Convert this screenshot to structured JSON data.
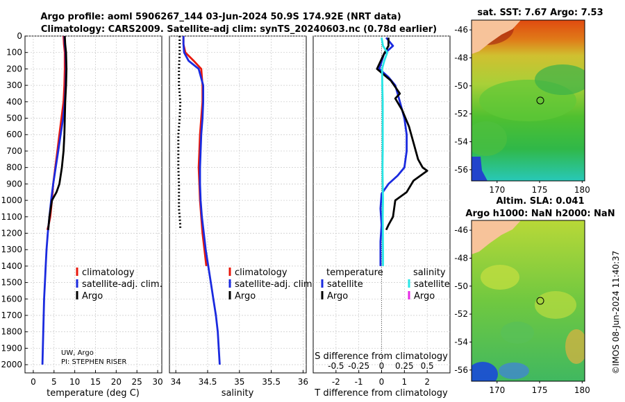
{
  "header": {
    "title_line1": "Argo profile: aoml 5906267_144 03-Jun-2024 50.9S 174.92E (NRT data)",
    "title_line2": "Climatology: CARS2009. Satellite-adj clim: synTS_20240603.nc (0.78d earlier)"
  },
  "credits": {
    "institution": "UW, Argo",
    "pi": "PI: STEPHEN RISER",
    "watermark": "©IMOS 08-Jun-2024 11:40:37"
  },
  "colors": {
    "climatology": "#e8180c",
    "satellite_adj": "#1a2adf",
    "argo": "#000000",
    "salinity_satellite": "#28e6e6",
    "salinity_argo": "#e628e6"
  },
  "chart_data": [
    {
      "type": "line",
      "id": "temperature",
      "xlabel": "temperature (deg C)",
      "ylabel": "",
      "xlim": [
        -2,
        31
      ],
      "ylim": [
        2050,
        0
      ],
      "xticks": [
        0,
        5,
        10,
        15,
        20,
        25,
        30
      ],
      "yticks": [
        0,
        100,
        200,
        300,
        400,
        500,
        600,
        700,
        800,
        900,
        1000,
        1100,
        1200,
        1300,
        1400,
        1500,
        1600,
        1700,
        1800,
        1900,
        2000
      ],
      "legend": [
        "climatology",
        "satellite-adj. clim.",
        "Argo"
      ],
      "series": [
        {
          "name": "climatology",
          "color": "#e8180c",
          "x": [
            7.3,
            7.4,
            7.6,
            7.6,
            7.5,
            7.3,
            6.8,
            6.3,
            5.8,
            5.3,
            4.8,
            4.5,
            4.1,
            3.7,
            3.4
          ],
          "y": [
            0,
            50,
            100,
            200,
            300,
            400,
            500,
            600,
            700,
            800,
            900,
            1000,
            1100,
            1150,
            1180
          ]
        },
        {
          "name": "satellite-adj. clim.",
          "color": "#1a2adf",
          "x": [
            7.5,
            7.6,
            7.8,
            7.9,
            7.8,
            7.6,
            7.2,
            6.6,
            6.0,
            5.4,
            4.8,
            4.3,
            3.9,
            3.5,
            3.2,
            3.0,
            2.8,
            2.6,
            2.5,
            2.4,
            2.3,
            2.2
          ],
          "y": [
            0,
            50,
            100,
            200,
            300,
            400,
            500,
            600,
            700,
            800,
            900,
            1000,
            1100,
            1200,
            1300,
            1400,
            1500,
            1600,
            1700,
            1800,
            1900,
            2000
          ]
        },
        {
          "name": "Argo",
          "color": "#000000",
          "x": [
            7.6,
            7.7,
            7.9,
            8.0,
            7.9,
            7.7,
            7.6,
            7.5,
            7.3,
            6.9,
            6.3,
            5.6,
            4.5,
            3.9,
            3.6
          ],
          "y": [
            0,
            50,
            100,
            200,
            300,
            400,
            500,
            600,
            700,
            800,
            900,
            950,
            1000,
            1100,
            1180
          ]
        }
      ]
    },
    {
      "type": "line",
      "id": "salinity",
      "xlabel": "salinity",
      "ylabel": "",
      "xlim": [
        33.9,
        36.05
      ],
      "ylim": [
        2050,
        0
      ],
      "xticks": [
        34,
        34.5,
        35,
        35.5,
        36
      ],
      "xticklabels": [
        "34",
        "34.5",
        "35",
        "35.5",
        "36"
      ],
      "legend": [
        "climatology",
        "satellite-adj. clim.",
        "Argo"
      ],
      "series": [
        {
          "name": "climatology",
          "color": "#e8180c",
          "x": [
            34.12,
            34.12,
            34.15,
            34.28,
            34.4,
            34.42,
            34.42,
            34.4,
            34.38,
            34.37,
            34.36,
            34.37,
            34.38,
            34.4,
            34.42,
            34.45,
            34.48
          ],
          "y": [
            0,
            50,
            100,
            150,
            200,
            300,
            400,
            500,
            600,
            700,
            800,
            900,
            1000,
            1100,
            1200,
            1300,
            1400
          ]
        },
        {
          "name": "satellite-adj. clim.",
          "color": "#1a2adf",
          "x": [
            34.12,
            34.12,
            34.13,
            34.2,
            34.36,
            34.43,
            34.43,
            34.42,
            34.4,
            34.39,
            34.38,
            34.38,
            34.39,
            34.41,
            34.44,
            34.47,
            34.51,
            34.55,
            34.59,
            34.63,
            34.66,
            34.69
          ],
          "y": [
            0,
            50,
            100,
            150,
            200,
            300,
            400,
            500,
            600,
            700,
            800,
            900,
            1000,
            1100,
            1200,
            1300,
            1400,
            1500,
            1600,
            1700,
            1800,
            2000
          ]
        },
        {
          "name": "Argo",
          "color": "#000000",
          "x": [
            34.06,
            34.06,
            34.05,
            34.05,
            34.06,
            34.07,
            34.06,
            34.04,
            34.04,
            34.04,
            34.05,
            34.05,
            34.05,
            34.06,
            34.07,
            34.07
          ],
          "y": [
            0,
            100,
            200,
            300,
            350,
            400,
            500,
            600,
            700,
            800,
            900,
            1000,
            1050,
            1100,
            1150,
            1180
          ]
        }
      ]
    },
    {
      "type": "line",
      "id": "difference",
      "xlabel": "T difference from climatology",
      "xlabel_top": "S difference from climatology",
      "xlim": [
        -3,
        3
      ],
      "ylim": [
        2050,
        0
      ],
      "xticks": [
        -2,
        -1,
        0,
        1,
        2
      ],
      "top_ticks": [
        -0.5,
        -0.25,
        0,
        0.25,
        0.5
      ],
      "top_ticklabels": [
        "-0.5",
        "-0.25",
        "0",
        "0.25",
        "0.5"
      ],
      "legend_headers": [
        "temperature",
        "salinity"
      ],
      "legend_temperature": [
        "satellite",
        "Argo"
      ],
      "legend_salinity": [
        "satellite",
        "Argo"
      ],
      "series": [
        {
          "name": "temperature satellite",
          "color": "#1a2adf",
          "x": [
            0.2,
            0.5,
            0.1,
            -0.1,
            0.3,
            0.6,
            0.8,
            1.0,
            1.1,
            1.1,
            1.0,
            0.7,
            0.3,
            0.0,
            -0.05,
            0.0,
            -0.05,
            -0.05
          ],
          "y": [
            10,
            60,
            110,
            200,
            250,
            300,
            400,
            500,
            600,
            700,
            800,
            850,
            900,
            960,
            1050,
            1150,
            1250,
            1400
          ]
        },
        {
          "name": "temperature Argo",
          "color": "#000000",
          "x": [
            0.3,
            0.3,
            0.1,
            -0.2,
            0.4,
            0.8,
            0.6,
            0.9,
            1.2,
            1.4,
            1.6,
            1.8,
            2.0,
            1.4,
            1.1,
            0.6,
            0.5,
            0.3,
            0.2
          ],
          "y": [
            10,
            60,
            110,
            200,
            270,
            350,
            380,
            450,
            550,
            650,
            750,
            800,
            820,
            880,
            950,
            1000,
            1100,
            1150,
            1180
          ]
        },
        {
          "name": "salinity satellite",
          "color": "#28e6e6",
          "x": [
            0.0,
            0.06,
            0.25,
            0.12,
            0.02,
            0.03,
            0.05,
            0.05,
            0.05,
            0.05,
            0.04,
            0.05,
            0.06,
            0.05,
            0.06,
            0.06
          ],
          "y": [
            10,
            60,
            100,
            150,
            200,
            300,
            400,
            500,
            600,
            700,
            800,
            900,
            1000,
            1100,
            1300,
            1400
          ]
        }
      ]
    },
    {
      "type": "heatmap",
      "id": "sst_map",
      "title": "sat. SST: 7.67 Argo: 7.53",
      "xlim": [
        167,
        180.3
      ],
      "ylim": [
        -56.8,
        -45.3
      ],
      "xticks": [
        170,
        175,
        180
      ],
      "yticks": [
        -46,
        -48,
        -50,
        -52,
        -54,
        -56
      ],
      "profile_location": [
        174.92,
        -50.9
      ]
    },
    {
      "type": "heatmap",
      "id": "sla_map",
      "title_line1": "Altim. SLA: 0.041",
      "title_line2": "Argo h1000: NaN h2000: NaN",
      "xlim": [
        167,
        180.3
      ],
      "ylim": [
        -56.8,
        -45.3
      ],
      "xticks": [
        170,
        175,
        180
      ],
      "yticks": [
        -46,
        -48,
        -50,
        -52,
        -54,
        -56
      ],
      "profile_location": [
        174.92,
        -50.9
      ]
    }
  ]
}
